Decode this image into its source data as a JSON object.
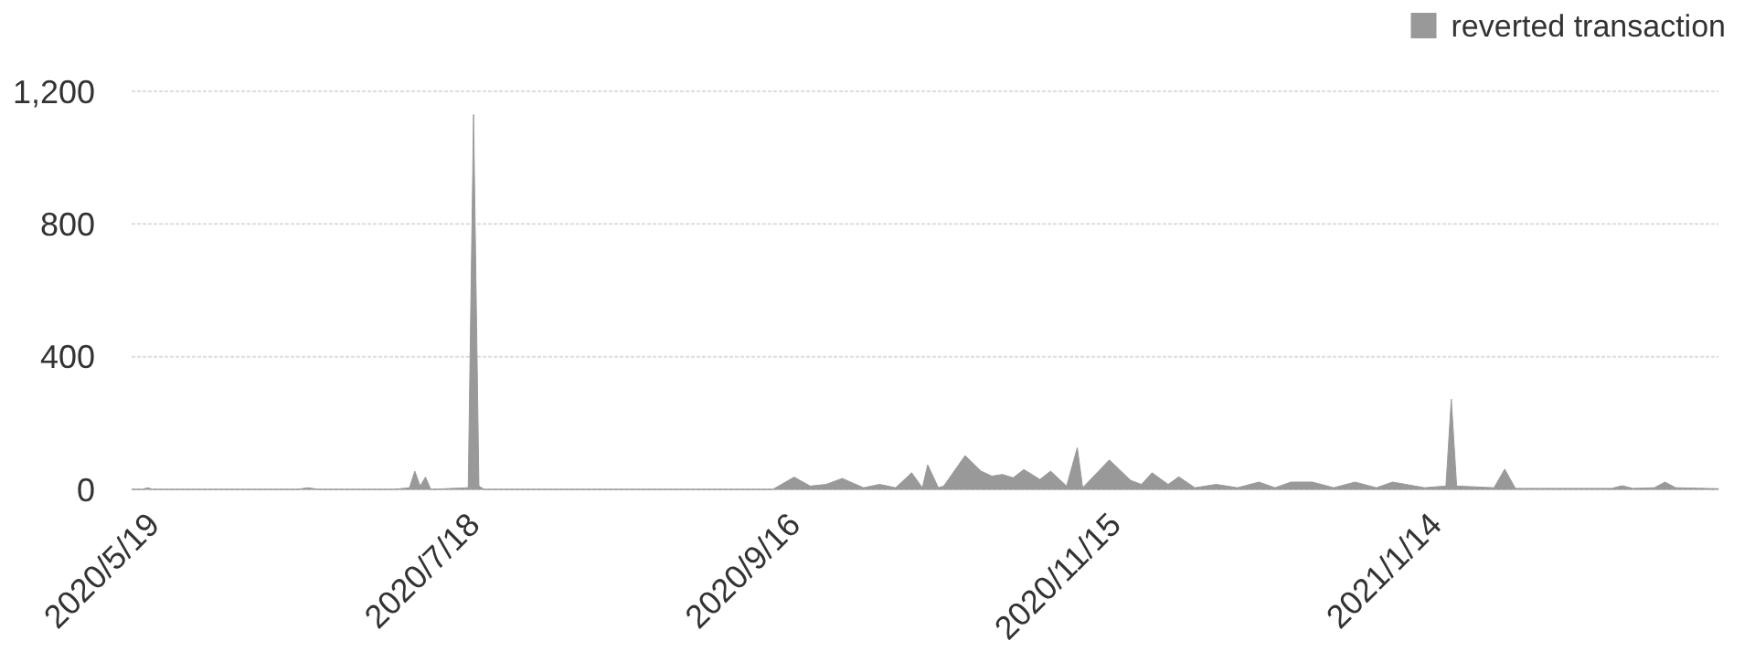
{
  "chart_data": {
    "type": "area",
    "legend": "top right",
    "grid": "y",
    "xlim": [
      "2020-05-15",
      "2021-03-08"
    ],
    "xticks": [
      {
        "value": "2020-05-19",
        "label": "2020/5/19"
      },
      {
        "value": "2020-07-18",
        "label": "2020/7/18"
      },
      {
        "value": "2020-09-16",
        "label": "2020/9/16"
      },
      {
        "value": "2020-11-15",
        "label": "2020/11/15"
      },
      {
        "value": "2021-01-14",
        "label": "2021/1/14"
      }
    ],
    "ylim": [
      0,
      1200
    ],
    "yticks": [
      0,
      400,
      800,
      {
        "value": 1200,
        "label": "1,200"
      }
    ],
    "series": [
      {
        "name": "reverted transaction",
        "color": "#999999",
        "x": [
          "2020-05-15",
          "2020-05-17",
          "2020-05-18",
          "2020-05-19",
          "2020-06-01",
          "2020-06-15",
          "2020-06-17",
          "2020-06-19",
          "2020-07-03",
          "2020-07-06",
          "2020-07-07",
          "2020-07-08",
          "2020-07-09",
          "2020-07-10",
          "2020-07-17",
          "2020-07-18",
          "2020-07-19",
          "2020-07-20",
          "2020-08-20",
          "2020-09-12",
          "2020-09-16",
          "2020-09-19",
          "2020-09-22",
          "2020-09-25",
          "2020-09-29",
          "2020-10-02",
          "2020-10-05",
          "2020-10-08",
          "2020-10-10",
          "2020-10-11",
          "2020-10-13",
          "2020-10-14",
          "2020-10-18",
          "2020-10-21",
          "2020-10-23",
          "2020-10-25",
          "2020-10-27",
          "2020-10-29",
          "2020-11-01",
          "2020-11-03",
          "2020-11-06",
          "2020-11-08",
          "2020-11-09",
          "2020-11-14",
          "2020-11-18",
          "2020-11-20",
          "2020-11-22",
          "2020-11-25",
          "2020-11-27",
          "2020-11-30",
          "2020-12-04",
          "2020-12-08",
          "2020-12-12",
          "2020-12-15",
          "2020-12-18",
          "2020-12-22",
          "2020-12-26",
          "2020-12-30",
          "2021-01-03",
          "2021-01-06",
          "2021-01-12",
          "2021-01-16",
          "2021-01-17",
          "2021-01-18",
          "2021-01-25",
          "2021-01-27",
          "2021-01-29",
          "2021-02-16",
          "2021-02-18",
          "2021-02-20",
          "2021-02-24",
          "2021-02-26",
          "2021-02-28",
          "2021-03-08"
        ],
        "values": [
          0,
          0,
          5,
          0,
          0,
          0,
          5,
          0,
          0,
          5,
          55,
          10,
          37,
          0,
          5,
          1130,
          10,
          0,
          0,
          0,
          37,
          10,
          15,
          33,
          5,
          15,
          5,
          50,
          5,
          74,
          5,
          10,
          102,
          55,
          40,
          45,
          35,
          60,
          30,
          55,
          10,
          126,
          5,
          89,
          27,
          15,
          50,
          15,
          38,
          5,
          15,
          5,
          22,
          5,
          22,
          22,
          5,
          22,
          5,
          22,
          5,
          10,
          272,
          10,
          5,
          61,
          3,
          3,
          11,
          3,
          5,
          22,
          5,
          2
        ]
      }
    ]
  }
}
